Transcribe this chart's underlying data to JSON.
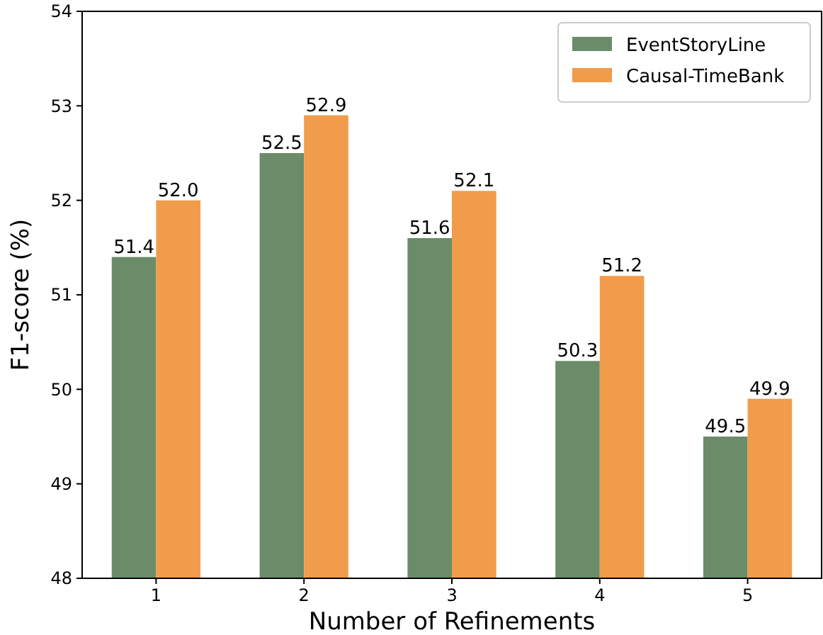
{
  "chart_data": {
    "type": "bar",
    "xlabel": "Number of Refinements",
    "ylabel": "F1-score (%)",
    "categories": [
      "1",
      "2",
      "3",
      "4",
      "5"
    ],
    "series": [
      {
        "name": "EventStoryLine",
        "color": "#6a8c69",
        "values": [
          51.4,
          52.5,
          51.6,
          50.3,
          49.5
        ],
        "value_labels": [
          "51.4",
          "52.5",
          "51.6",
          "50.3",
          "49.5"
        ]
      },
      {
        "name": "Causal-TimeBank",
        "color": "#f09c4a",
        "values": [
          52.0,
          52.9,
          52.1,
          51.2,
          49.9
        ],
        "value_labels": [
          "52.0",
          "52.9",
          "52.1",
          "51.2",
          "49.9"
        ]
      }
    ],
    "ylim": [
      48,
      54
    ],
    "yticks": [
      48,
      49,
      50,
      51,
      52,
      53,
      54
    ],
    "legend": "top right"
  }
}
